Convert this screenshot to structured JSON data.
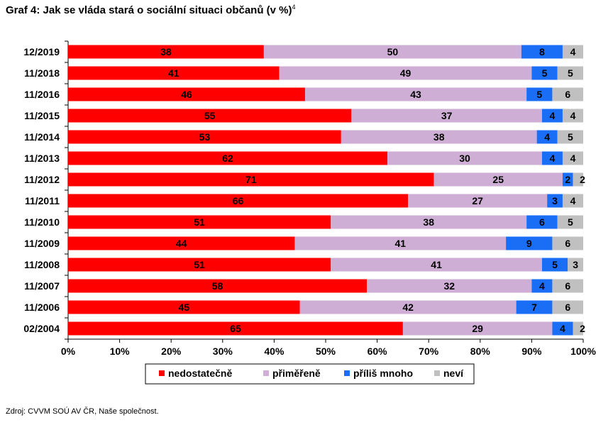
{
  "title": "Graf 4: Jak se vláda stará o sociální situaci občanů (v %)",
  "title_sup": "4",
  "source": "Zdroj: CVVM SOÚ AV ČR, Naše společnost.",
  "chart_data": {
    "type": "bar",
    "orientation": "horizontal",
    "stacked": true,
    "percent": true,
    "title": "Graf 4: Jak se vláda stará o sociální situaci občanů (v %)",
    "categories": [
      "12/2019",
      "11/2018",
      "11/2016",
      "11/2015",
      "11/2014",
      "11/2013",
      "11/2012",
      "11/2011",
      "11/2010",
      "11/2009",
      "11/2008",
      "11/2007",
      "11/2006",
      "02/2004"
    ],
    "series": [
      {
        "name": "nedostatečně",
        "color": "#ff0000",
        "values": [
          38,
          41,
          46,
          55,
          53,
          62,
          71,
          66,
          51,
          44,
          51,
          58,
          45,
          65
        ]
      },
      {
        "name": "přiměřeně",
        "color": "#cfaed6",
        "values": [
          50,
          49,
          43,
          37,
          38,
          30,
          25,
          27,
          38,
          41,
          41,
          32,
          42,
          29
        ]
      },
      {
        "name": "příliš mnoho",
        "color": "#1a6ef5",
        "values": [
          8,
          5,
          5,
          4,
          4,
          4,
          2,
          3,
          6,
          9,
          5,
          4,
          7,
          4
        ]
      },
      {
        "name": "neví",
        "color": "#c0c0c0",
        "values": [
          4,
          5,
          6,
          4,
          5,
          4,
          2,
          4,
          5,
          6,
          3,
          6,
          6,
          2
        ]
      }
    ],
    "xticks": [
      "0%",
      "10%",
      "20%",
      "30%",
      "40%",
      "50%",
      "60%",
      "70%",
      "80%",
      "90%",
      "100%"
    ],
    "xlim": [
      0,
      100
    ],
    "xlabel": "",
    "ylabel": "",
    "grid": false,
    "legend_position": "bottom"
  }
}
